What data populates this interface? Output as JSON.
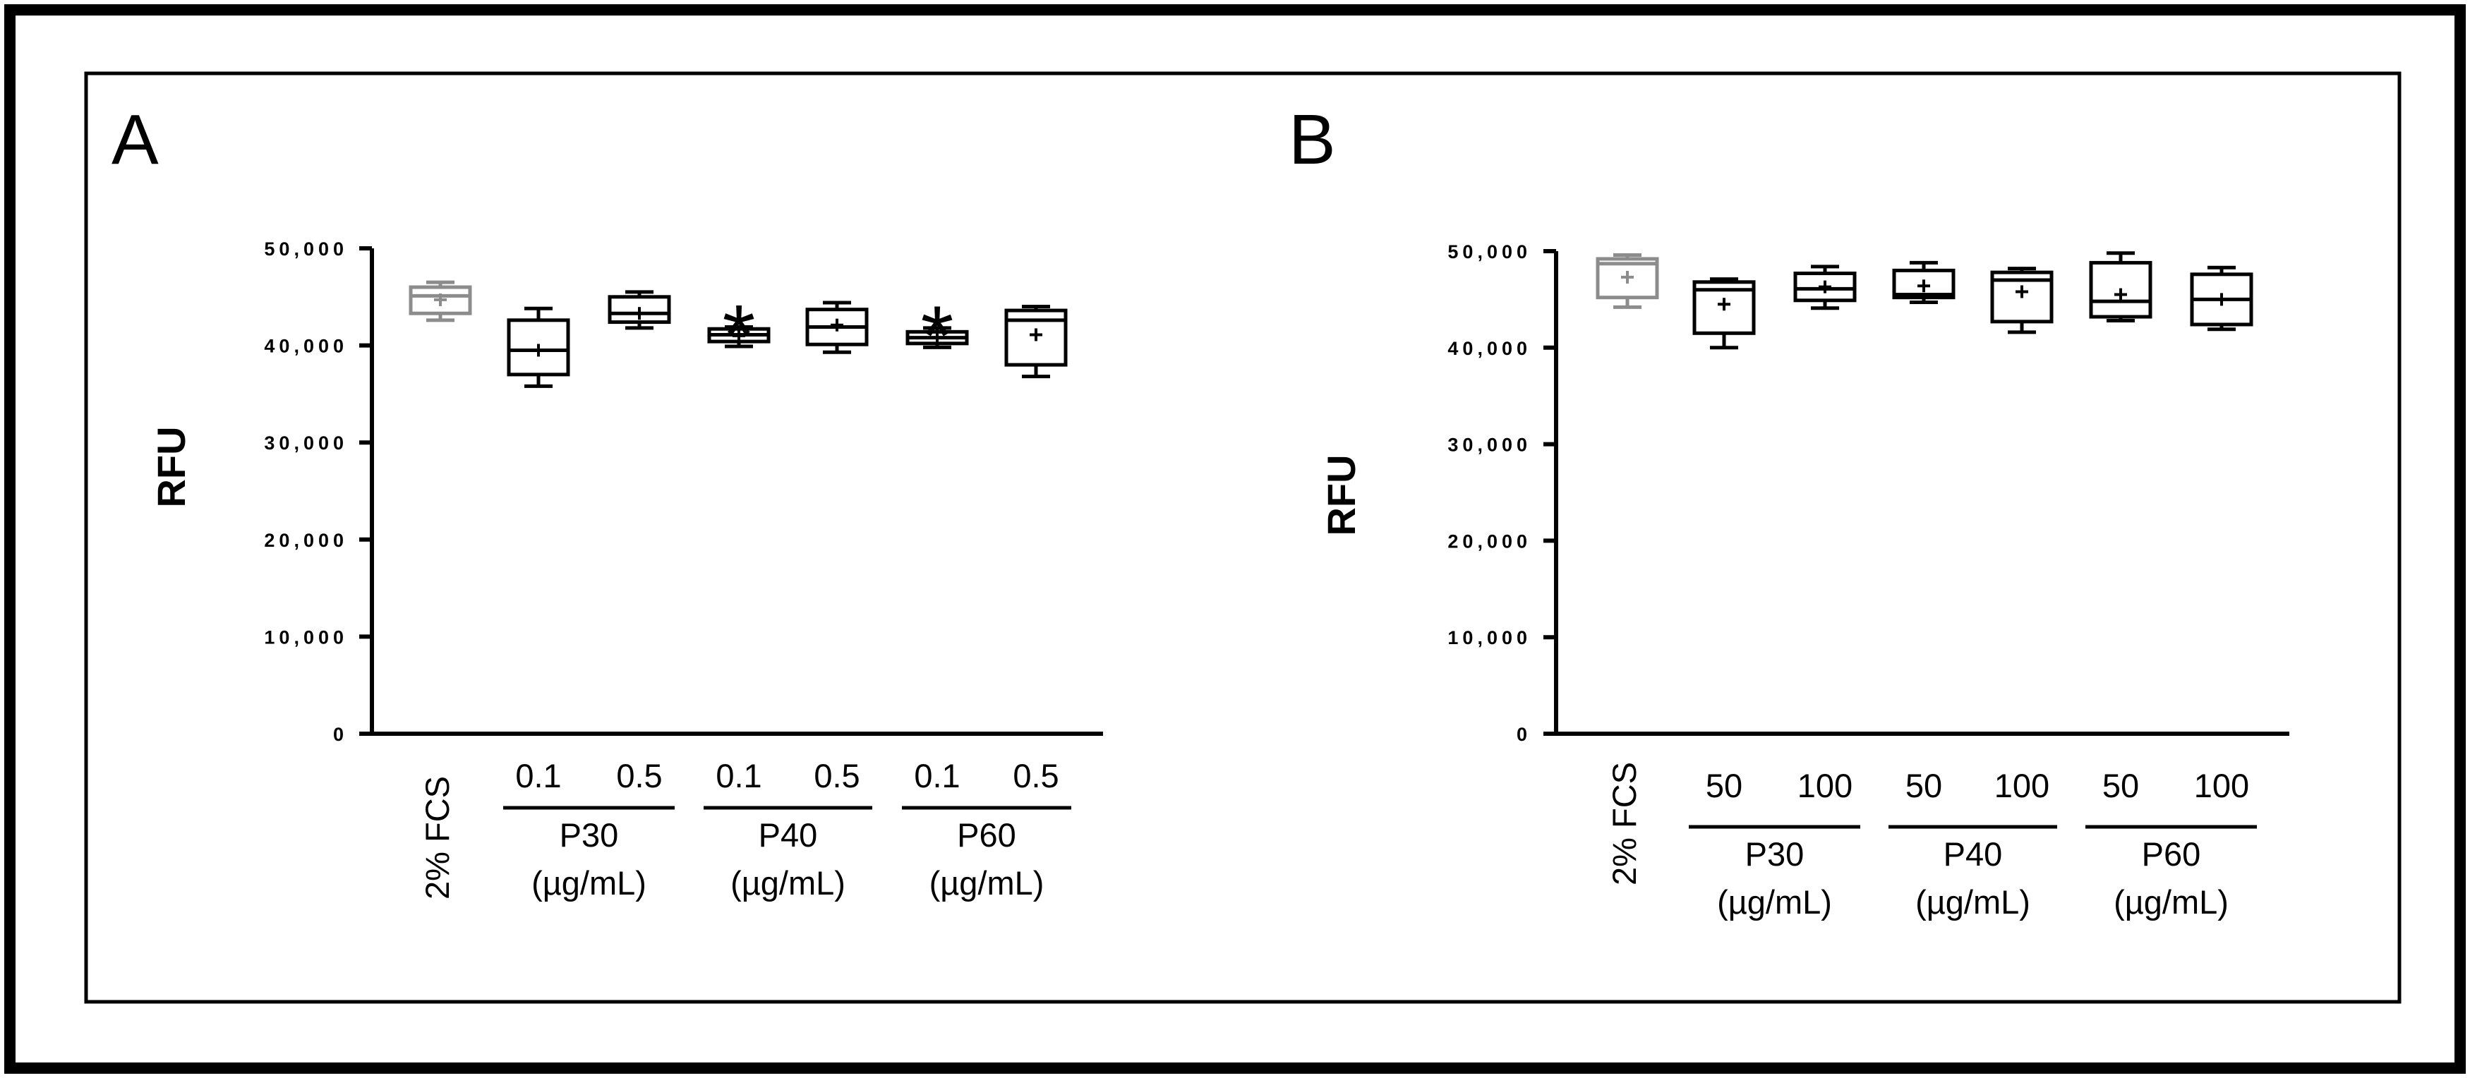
{
  "chart_data": [
    {
      "type": "box",
      "panel_label": "A",
      "ylabel": "RFU",
      "ylim": [
        0,
        50000
      ],
      "yticks": [
        "0",
        "10,000",
        "20,000",
        "30,000",
        "40,000",
        "50,000"
      ],
      "control_label": "2% FCS",
      "group_units": "(µg/mL)",
      "groups": [
        "P30",
        "P40",
        "P60"
      ],
      "dose_labels": [
        "0.1",
        "0.5"
      ],
      "boxes": [
        {
          "group": "2% FCS",
          "dose": "",
          "min": 42600,
          "q1": 43300,
          "median": 45100,
          "q3": 46000,
          "max": 46500,
          "mean": 44700,
          "significant": false,
          "color": "#8c8c8c"
        },
        {
          "group": "P30",
          "dose": "0.1",
          "min": 35800,
          "q1": 37000,
          "median": 39500,
          "q3": 42600,
          "max": 43800,
          "mean": 39500,
          "significant": false,
          "color": "#000000"
        },
        {
          "group": "P30",
          "dose": "0.5",
          "min": 41800,
          "q1": 42400,
          "median": 43300,
          "q3": 45000,
          "max": 45500,
          "mean": 43300,
          "significant": false,
          "color": "#000000"
        },
        {
          "group": "P40",
          "dose": "0.1",
          "min": 39900,
          "q1": 40400,
          "median": 41100,
          "q3": 41700,
          "max": 41900,
          "mean": 41000,
          "significant": true,
          "color": "#000000"
        },
        {
          "group": "P40",
          "dose": "0.5",
          "min": 39300,
          "q1": 40100,
          "median": 41900,
          "q3": 43700,
          "max": 44400,
          "mean": 42100,
          "significant": false,
          "color": "#000000"
        },
        {
          "group": "P60",
          "dose": "0.1",
          "min": 39800,
          "q1": 40200,
          "median": 40800,
          "q3": 41400,
          "max": 41800,
          "mean": 40800,
          "significant": true,
          "color": "#000000"
        },
        {
          "group": "P60",
          "dose": "0.5",
          "min": 36800,
          "q1": 38000,
          "median": 42600,
          "q3": 43600,
          "max": 44000,
          "mean": 41100,
          "significant": false,
          "color": "#000000"
        }
      ],
      "significance_marker": "*"
    },
    {
      "type": "box",
      "panel_label": "B",
      "ylabel": "RFU",
      "ylim": [
        0,
        50000
      ],
      "yticks": [
        "0",
        "10,000",
        "20,000",
        "30,000",
        "40,000",
        "50,000"
      ],
      "control_label": "2% FCS",
      "group_units": "(µg/mL)",
      "groups": [
        "P30",
        "P40",
        "P60"
      ],
      "dose_labels": [
        "50",
        "100"
      ],
      "boxes": [
        {
          "group": "2% FCS",
          "dose": "",
          "min": 44200,
          "q1": 45200,
          "median": 48700,
          "q3": 49200,
          "max": 49600,
          "mean": 47300,
          "significant": false,
          "color": "#8c8c8c"
        },
        {
          "group": "P30",
          "dose": "50",
          "min": 40000,
          "q1": 41500,
          "median": 46000,
          "q3": 46800,
          "max": 47100,
          "mean": 44500,
          "significant": false,
          "color": "#000000"
        },
        {
          "group": "P30",
          "dose": "100",
          "min": 44100,
          "q1": 44900,
          "median": 46100,
          "q3": 47700,
          "max": 48400,
          "mean": 46300,
          "significant": false,
          "color": "#000000"
        },
        {
          "group": "P40",
          "dose": "50",
          "min": 44700,
          "q1": 45200,
          "median": 45500,
          "q3": 48000,
          "max": 48800,
          "mean": 46400,
          "significant": false,
          "color": "#000000"
        },
        {
          "group": "P40",
          "dose": "100",
          "min": 41600,
          "q1": 42700,
          "median": 47000,
          "q3": 47800,
          "max": 48200,
          "mean": 45800,
          "significant": false,
          "color": "#000000"
        },
        {
          "group": "P60",
          "dose": "50",
          "min": 42800,
          "q1": 43200,
          "median": 44800,
          "q3": 48800,
          "max": 49800,
          "mean": 45500,
          "significant": false,
          "color": "#000000"
        },
        {
          "group": "P60",
          "dose": "100",
          "min": 41900,
          "q1": 42400,
          "median": 45000,
          "q3": 47600,
          "max": 48300,
          "mean": 45000,
          "significant": false,
          "color": "#000000"
        }
      ],
      "significance_marker": "*"
    }
  ]
}
